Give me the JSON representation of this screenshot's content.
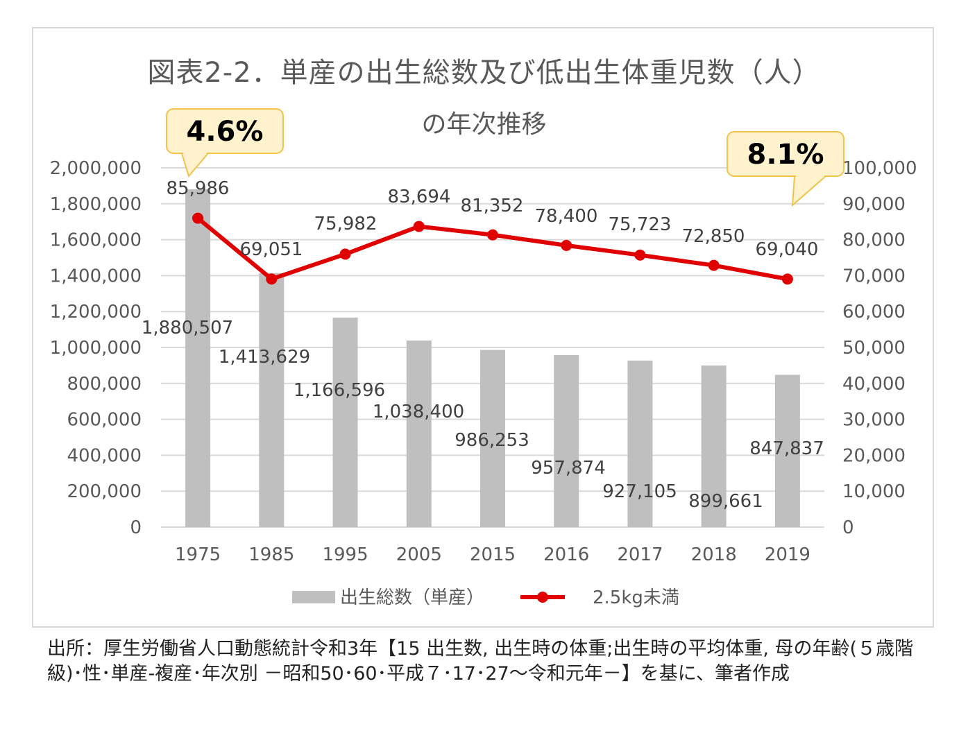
{
  "chart_data": {
    "type": "bar+line",
    "title_line1": "図表2-2．単産の出生総数及び低出生体重児数（人）",
    "title_line2": "の年次推移",
    "categories": [
      "1975",
      "1985",
      "1995",
      "2005",
      "2015",
      "2016",
      "2017",
      "2018",
      "2019"
    ],
    "series": [
      {
        "name": "出生総数（単産）",
        "type": "bar",
        "axis": "left",
        "values": [
          1880507,
          1413629,
          1166596,
          1038400,
          986253,
          957874,
          927105,
          899661,
          847837
        ],
        "labels": [
          "1,880,507",
          "1,413,629",
          "1,166,596",
          "1,038,400",
          "986,253",
          "957,874",
          "927,105",
          "899,661",
          "847,837"
        ],
        "color": "#bfbfbf"
      },
      {
        "name": "2.5kg未満",
        "type": "line",
        "axis": "right",
        "values": [
          85986,
          69051,
          75982,
          83694,
          81352,
          78400,
          75723,
          72850,
          69040
        ],
        "labels": [
          "85,986",
          "69,051",
          "75,982",
          "83,694",
          "81,352",
          "78,400",
          "75,723",
          "72,850",
          "69,040"
        ],
        "color": "#e00000"
      }
    ],
    "y_left": {
      "min": 0,
      "max": 2000000,
      "step": 200000,
      "ticks": [
        "0",
        "200,000",
        "400,000",
        "600,000",
        "800,000",
        "1,000,000",
        "1,200,000",
        "1,400,000",
        "1,600,000",
        "1,800,000",
        "2,000,000"
      ]
    },
    "y_right": {
      "min": 0,
      "max": 100000,
      "step": 10000,
      "ticks": [
        "0",
        "10,000",
        "20,000",
        "30,000",
        "40,000",
        "50,000",
        "60,000",
        "70,000",
        "80,000",
        "90,000",
        "100,000"
      ]
    },
    "grid": true,
    "legend_position": "bottom",
    "callouts": [
      {
        "text": "4.6%",
        "category": "1975"
      },
      {
        "text": "8.1%",
        "category": "2019"
      }
    ]
  },
  "source_note": "出所：厚生労働省人口動態統計令和3年【15 出生数, 出生時の体重;出生時の平均体重, 母の年齢(５歳階級)･性･単産-複産･年次別 －昭和50･60･平成７･17･27～令和元年－】を基に、筆者作成"
}
